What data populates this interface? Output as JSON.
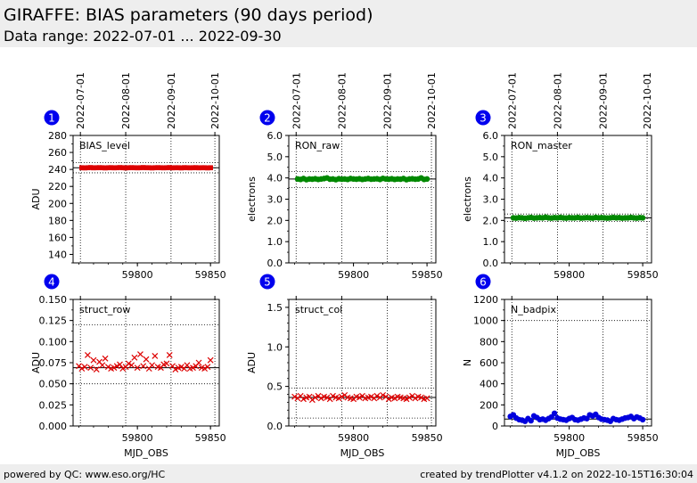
{
  "header": {
    "title": "GIRAFFE: BIAS parameters (90 days period)",
    "subtitle": "Data range: 2022-07-01 ... 2022-09-30"
  },
  "footer": {
    "left": "powered by QC: www.eso.org/HC",
    "right": "created by trendPlotter v4.1.2 on 2022-10-15T16:30:04"
  },
  "colors": {
    "red": "#dd0000",
    "green": "#008800",
    "blue": "#0000dd",
    "badge": "#0000ee",
    "header_bg": "#eeeeee"
  },
  "chart_data": [
    {
      "panel": "1",
      "type": "scatter",
      "label": "BIAS_level",
      "ylabel": "ADU",
      "xlabel": "",
      "xlim": [
        59756,
        59856
      ],
      "ylim": [
        130,
        280
      ],
      "yticks": [
        140,
        160,
        180,
        200,
        220,
        240,
        260,
        280
      ],
      "yticklabels": [
        "140",
        "160",
        "180",
        "200",
        "220",
        "240",
        "260",
        "280"
      ],
      "minor_step": 10,
      "minor_from": 130,
      "xticks": [
        59800,
        59850
      ],
      "xticklabels": [
        "59800",
        "59850"
      ],
      "date_ticks": [
        59761,
        59792,
        59823,
        59853
      ],
      "date_labels": [
        "2022-07-01",
        "2022-08-01",
        "2022-09-01",
        "2022-10-01"
      ],
      "marker": "square",
      "color": "#dd0000",
      "ref_line": 242,
      "thresholds": [
        236,
        248
      ],
      "x": [
        59762,
        59764,
        59766,
        59768,
        59770,
        59772,
        59774,
        59776,
        59778,
        59780,
        59782,
        59784,
        59786,
        59788,
        59790,
        59792,
        59794,
        59796,
        59798,
        59800,
        59802,
        59804,
        59806,
        59808,
        59810,
        59812,
        59814,
        59816,
        59818,
        59820,
        59822,
        59824,
        59826,
        59828,
        59830,
        59832,
        59834,
        59836,
        59838,
        59840,
        59842,
        59844,
        59846,
        59848,
        59850
      ],
      "y": [
        242,
        241.8,
        242,
        242.2,
        241.9,
        242,
        242.1,
        242,
        241.8,
        242,
        242.1,
        241.9,
        242,
        242.2,
        242,
        241.8,
        242,
        242.1,
        242,
        241.9,
        242,
        242.2,
        242,
        242,
        241.8,
        242,
        242.1,
        242,
        241.9,
        242,
        242.2,
        241.9,
        242,
        242,
        241.8,
        242.1,
        242,
        241.9,
        242,
        242.1,
        241.9,
        242,
        242,
        241.8,
        242
      ]
    },
    {
      "panel": "2",
      "type": "scatter",
      "label": "RON_raw",
      "ylabel": "electrons",
      "xlabel": "",
      "xlim": [
        59756,
        59856
      ],
      "ylim": [
        0,
        6
      ],
      "yticks": [
        0,
        1,
        2,
        3,
        4,
        5,
        6
      ],
      "yticklabels": [
        "0.0",
        "1.0",
        "2.0",
        "3.0",
        "4.0",
        "5.0",
        "6.0"
      ],
      "minor_step": 0.5,
      "minor_from": 0,
      "xticks": [
        59800,
        59850
      ],
      "xticklabels": [
        "59800",
        "59850"
      ],
      "date_ticks": [
        59761,
        59792,
        59823,
        59853
      ],
      "date_labels": [
        "2022-07-01",
        "2022-08-01",
        "2022-09-01",
        "2022-10-01"
      ],
      "marker": "circle",
      "color": "#008800",
      "ref_line": 3.95,
      "thresholds": [
        3.55,
        4.3
      ],
      "x": [
        59762,
        59764,
        59766,
        59768,
        59770,
        59772,
        59774,
        59776,
        59778,
        59780,
        59782,
        59784,
        59786,
        59788,
        59790,
        59792,
        59794,
        59796,
        59798,
        59800,
        59802,
        59804,
        59806,
        59808,
        59810,
        59812,
        59814,
        59816,
        59818,
        59820,
        59822,
        59824,
        59826,
        59828,
        59830,
        59832,
        59834,
        59836,
        59838,
        59840,
        59842,
        59844,
        59846,
        59848,
        59850
      ],
      "y": [
        3.95,
        3.93,
        3.97,
        3.92,
        3.95,
        3.94,
        3.96,
        3.93,
        3.95,
        3.97,
        4.0,
        3.94,
        3.95,
        3.92,
        3.96,
        3.94,
        3.95,
        3.93,
        3.97,
        3.95,
        3.94,
        3.96,
        3.93,
        3.95,
        3.97,
        3.94,
        3.95,
        3.96,
        3.93,
        3.98,
        3.95,
        3.94,
        3.96,
        3.93,
        3.95,
        3.94,
        3.97,
        3.92,
        3.95,
        3.96,
        3.94,
        3.95,
        4.0,
        3.93,
        3.95
      ]
    },
    {
      "panel": "3",
      "type": "scatter",
      "label": "RON_master",
      "ylabel": "electrons",
      "xlabel": "",
      "xlim": [
        59756,
        59856
      ],
      "ylim": [
        0,
        6
      ],
      "yticks": [
        0,
        1,
        2,
        3,
        4,
        5,
        6
      ],
      "yticklabels": [
        "0.0",
        "1.0",
        "2.0",
        "3.0",
        "4.0",
        "5.0",
        "6.0"
      ],
      "minor_step": 0.5,
      "minor_from": 0,
      "xticks": [
        59800,
        59850
      ],
      "xticklabels": [
        "59800",
        "59850"
      ],
      "date_ticks": [
        59761,
        59792,
        59823,
        59853
      ],
      "date_labels": [
        "2022-07-01",
        "2022-08-01",
        "2022-09-01",
        "2022-10-01"
      ],
      "marker": "circle",
      "color": "#008800",
      "ref_line": 2.12,
      "thresholds": [
        1.95,
        2.3
      ],
      "x": [
        59762,
        59764,
        59766,
        59768,
        59770,
        59772,
        59774,
        59776,
        59778,
        59780,
        59782,
        59784,
        59786,
        59788,
        59790,
        59792,
        59794,
        59796,
        59798,
        59800,
        59802,
        59804,
        59806,
        59808,
        59810,
        59812,
        59814,
        59816,
        59818,
        59820,
        59822,
        59824,
        59826,
        59828,
        59830,
        59832,
        59834,
        59836,
        59838,
        59840,
        59842,
        59844,
        59846,
        59848,
        59850
      ],
      "y": [
        2.12,
        2.11,
        2.13,
        2.12,
        2.1,
        2.12,
        2.14,
        2.11,
        2.12,
        2.13,
        2.12,
        2.15,
        2.12,
        2.11,
        2.13,
        2.12,
        2.14,
        2.12,
        2.11,
        2.13,
        2.12,
        2.12,
        2.14,
        2.11,
        2.12,
        2.13,
        2.12,
        2.11,
        2.14,
        2.12,
        2.13,
        2.12,
        2.11,
        2.12,
        2.14,
        2.12,
        2.13,
        2.11,
        2.12,
        2.12,
        2.14,
        2.12,
        2.11,
        2.13,
        2.12
      ]
    },
    {
      "panel": "4",
      "type": "scatter",
      "label": "struct_row",
      "ylabel": "ADU",
      "xlabel": "MJD_OBS",
      "xlim": [
        59756,
        59856
      ],
      "ylim": [
        0,
        0.15
      ],
      "yticks": [
        0,
        0.025,
        0.05,
        0.075,
        0.1,
        0.125,
        0.15
      ],
      "yticklabels": [
        "0.000",
        "0.025",
        "0.050",
        "0.075",
        "0.100",
        "0.125",
        "0.150"
      ],
      "minor_step": 0.0125,
      "minor_from": 0,
      "xticks": [
        59800,
        59850
      ],
      "xticklabels": [
        "59800",
        "59850"
      ],
      "date_ticks": [
        59761,
        59792,
        59823,
        59853
      ],
      "date_labels": [],
      "marker": "cross",
      "color": "#dd0000",
      "ref_line": 0.069,
      "thresholds": [
        0.05,
        0.12
      ],
      "x": [
        59760,
        59762,
        59764,
        59766,
        59768,
        59770,
        59772,
        59774,
        59776,
        59778,
        59780,
        59782,
        59784,
        59786,
        59788,
        59790,
        59792,
        59794,
        59796,
        59798,
        59800,
        59802,
        59804,
        59806,
        59808,
        59810,
        59812,
        59814,
        59816,
        59818,
        59820,
        59822,
        59824,
        59826,
        59828,
        59830,
        59832,
        59834,
        59836,
        59838,
        59840,
        59842,
        59844,
        59846,
        59848,
        59850
      ],
      "y": [
        0.071,
        0.068,
        0.07,
        0.084,
        0.069,
        0.078,
        0.067,
        0.076,
        0.072,
        0.08,
        0.07,
        0.068,
        0.069,
        0.071,
        0.073,
        0.068,
        0.07,
        0.074,
        0.072,
        0.081,
        0.069,
        0.085,
        0.071,
        0.079,
        0.068,
        0.072,
        0.083,
        0.07,
        0.069,
        0.073,
        0.074,
        0.084,
        0.071,
        0.067,
        0.069,
        0.07,
        0.068,
        0.072,
        0.068,
        0.069,
        0.071,
        0.075,
        0.069,
        0.068,
        0.07,
        0.078
      ]
    },
    {
      "panel": "5",
      "type": "scatter",
      "label": "struct_col",
      "ylabel": "ADU",
      "xlabel": "MJD_OBS",
      "xlim": [
        59756,
        59856
      ],
      "ylim": [
        0,
        1.6
      ],
      "yticks": [
        0,
        0.5,
        1.0,
        1.5
      ],
      "yticklabels": [
        "0.0",
        "0.5",
        "1.0",
        "1.5"
      ],
      "minor_step": 0.1,
      "minor_from": 0,
      "xticks": [
        59800,
        59850
      ],
      "xticklabels": [
        "59800",
        "59850"
      ],
      "date_ticks": [
        59761,
        59792,
        59823,
        59853
      ],
      "date_labels": [],
      "marker": "cross",
      "color": "#dd0000",
      "ref_line": 0.36,
      "thresholds": [
        0.1,
        0.48
      ],
      "x": [
        59760,
        59762,
        59764,
        59766,
        59768,
        59770,
        59772,
        59774,
        59776,
        59778,
        59780,
        59782,
        59784,
        59786,
        59788,
        59790,
        59792,
        59794,
        59796,
        59798,
        59800,
        59802,
        59804,
        59806,
        59808,
        59810,
        59812,
        59814,
        59816,
        59818,
        59820,
        59822,
        59824,
        59826,
        59828,
        59830,
        59832,
        59834,
        59836,
        59838,
        59840,
        59842,
        59844,
        59846,
        59848,
        59850
      ],
      "y": [
        0.37,
        0.35,
        0.38,
        0.34,
        0.36,
        0.37,
        0.33,
        0.36,
        0.38,
        0.35,
        0.37,
        0.36,
        0.34,
        0.38,
        0.36,
        0.35,
        0.37,
        0.39,
        0.36,
        0.35,
        0.34,
        0.37,
        0.36,
        0.38,
        0.35,
        0.36,
        0.37,
        0.35,
        0.38,
        0.36,
        0.39,
        0.37,
        0.34,
        0.36,
        0.35,
        0.37,
        0.36,
        0.35,
        0.34,
        0.36,
        0.38,
        0.35,
        0.37,
        0.36,
        0.34,
        0.35
      ]
    },
    {
      "panel": "6",
      "type": "scatter",
      "label": "N_badpix",
      "ylabel": "N",
      "xlabel": "MJD_OBS",
      "xlim": [
        59756,
        59856
      ],
      "ylim": [
        0,
        1200
      ],
      "yticks": [
        0,
        200,
        400,
        600,
        800,
        1000,
        1200
      ],
      "yticklabels": [
        "0",
        "200",
        "400",
        "600",
        "800",
        "1000",
        "1200"
      ],
      "minor_step": 100,
      "minor_from": 0,
      "xticks": [
        59800,
        59850
      ],
      "xticklabels": [
        "59800",
        "59850"
      ],
      "date_ticks": [
        59761,
        59792,
        59823,
        59853
      ],
      "date_labels": [],
      "marker": "circle",
      "color": "#0000dd",
      "ref_line": 65,
      "thresholds": [
        1000
      ],
      "x": [
        59760,
        59762,
        59764,
        59766,
        59768,
        59770,
        59772,
        59774,
        59776,
        59778,
        59780,
        59782,
        59784,
        59786,
        59788,
        59790,
        59792,
        59794,
        59796,
        59798,
        59800,
        59802,
        59804,
        59806,
        59808,
        59810,
        59812,
        59814,
        59816,
        59818,
        59820,
        59822,
        59824,
        59826,
        59828,
        59830,
        59832,
        59834,
        59836,
        59838,
        59840,
        59842,
        59844,
        59846,
        59848,
        59850
      ],
      "y": [
        90,
        105,
        75,
        60,
        55,
        45,
        70,
        50,
        95,
        80,
        60,
        65,
        55,
        70,
        85,
        120,
        75,
        65,
        60,
        55,
        70,
        80,
        60,
        55,
        65,
        75,
        70,
        105,
        95,
        110,
        80,
        65,
        60,
        55,
        45,
        70,
        60,
        55,
        65,
        75,
        80,
        90,
        70,
        85,
        75,
        60
      ]
    }
  ]
}
